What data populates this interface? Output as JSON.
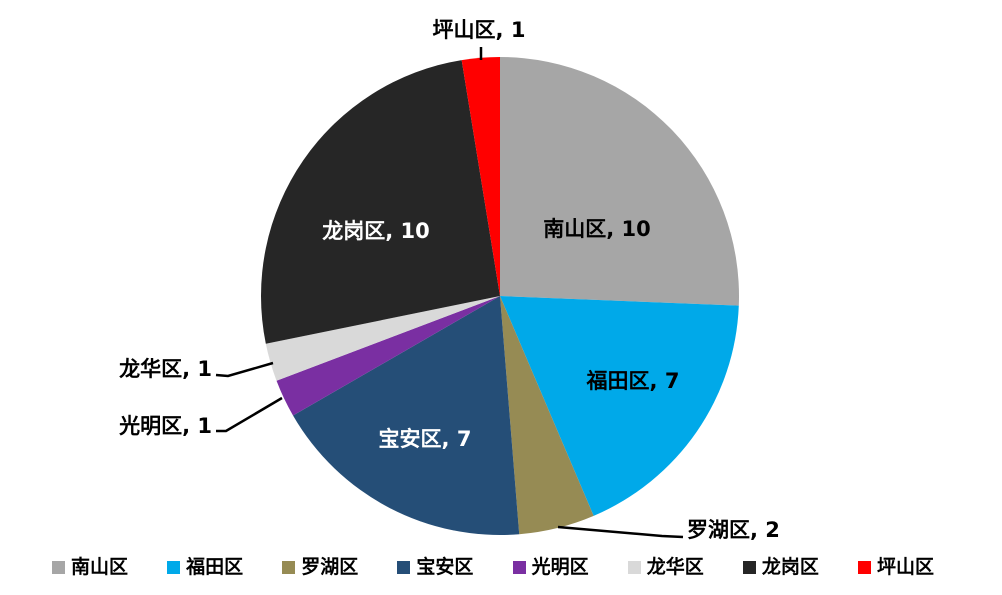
{
  "chart_data": {
    "type": "pie",
    "title": "",
    "categories": [
      "南山区",
      "福田区",
      "罗湖区",
      "宝安区",
      "光明区",
      "龙华区",
      "龙岗区",
      "坪山区"
    ],
    "values": [
      10,
      7,
      2,
      7,
      1,
      1,
      10,
      1
    ],
    "total": 39,
    "colors": [
      "#A6A6A6",
      "#00A9E9",
      "#968B54",
      "#254E77",
      "#7A2FA2",
      "#D9D9D9",
      "#262626",
      "#FF0000"
    ],
    "data_labels": [
      "南山区, 10",
      "福田区, 7",
      "罗湖区, 2",
      "宝安区, 7",
      "光明区, 1",
      "龙华区, 1",
      "龙岗区, 10",
      "坪山区, 1"
    ],
    "label_format": "{name}, {value}",
    "label_separator": ", ",
    "start_angle_deg": 0,
    "direction": "clockwise",
    "legend_position": "bottom",
    "background_color": "#FFFFFF",
    "leader_line_color": "#000000",
    "inside_label_colors": {
      "on_light": "#000000",
      "on_dark": "#FFFFFF"
    }
  },
  "legend": {
    "items": [
      "南山区",
      "福田区",
      "罗湖区",
      "宝安区",
      "光明区",
      "龙华区",
      "龙岗区",
      "坪山区"
    ]
  }
}
